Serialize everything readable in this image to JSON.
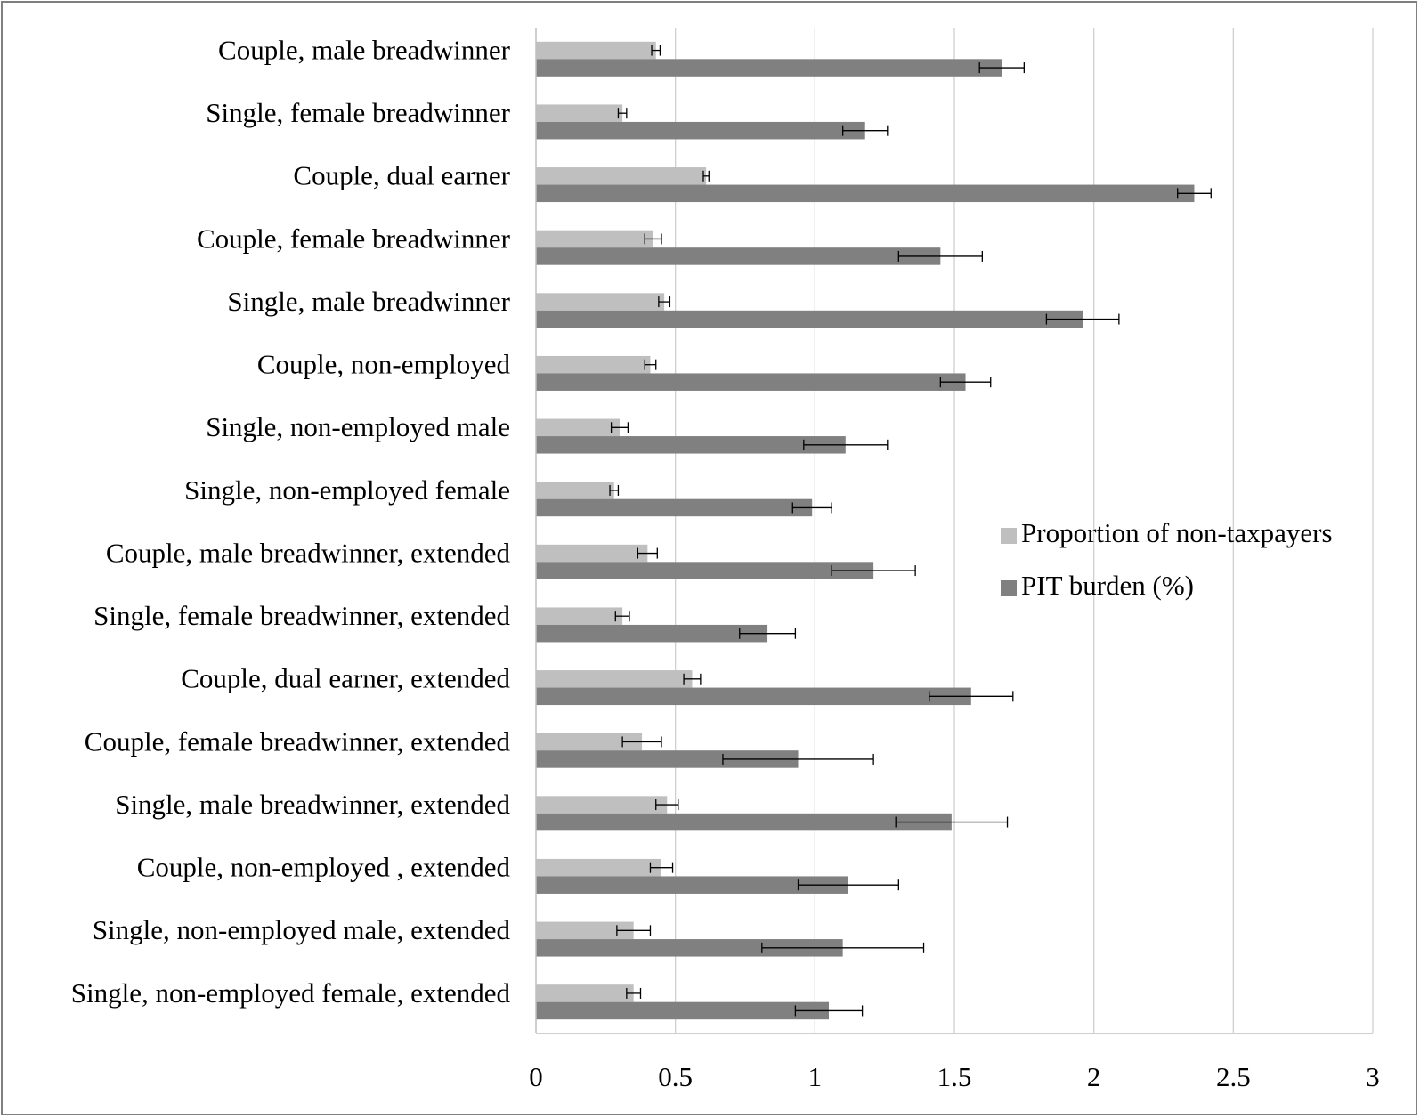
{
  "chart_data": {
    "type": "bar",
    "orientation": "horizontal",
    "title": "",
    "xlabel": "",
    "ylabel": "",
    "xlim": [
      0,
      3
    ],
    "x_ticks": [
      0,
      0.5,
      1,
      1.5,
      2,
      2.5,
      3
    ],
    "x_tick_labels": [
      "0",
      "0.5",
      "1",
      "1.5",
      "2",
      "2.5",
      "3"
    ],
    "grid": "vertical",
    "legend_position": "right",
    "categories": [
      "Couple, male breadwinner",
      "Single, female breadwinner",
      "Couple, dual earner",
      "Couple, female breadwinner",
      "Single, male breadwinner",
      "Couple, non-employed",
      "Single, non-employed male",
      "Single, non-employed female",
      "Couple, male breadwinner, extended",
      "Single, female breadwinner, extended",
      "Couple, dual earner, extended",
      "Couple, female breadwinner, extended",
      "Single, male breadwinner, extended",
      "Couple, non-employed , extended",
      "Single, non-employed male, extended",
      "Single, non-employed female, extended"
    ],
    "series": [
      {
        "name": "Proportion of non-taxpayers",
        "color": "#bfbfbf",
        "values": [
          0.43,
          0.31,
          0.61,
          0.42,
          0.46,
          0.41,
          0.3,
          0.28,
          0.4,
          0.31,
          0.56,
          0.38,
          0.47,
          0.45,
          0.35,
          0.35
        ],
        "error": [
          0.015,
          0.015,
          0.01,
          0.03,
          0.02,
          0.02,
          0.03,
          0.015,
          0.035,
          0.025,
          0.03,
          0.07,
          0.04,
          0.04,
          0.06,
          0.025
        ]
      },
      {
        "name": "PIT burden (%)",
        "color": "#808080",
        "values": [
          1.67,
          1.18,
          2.36,
          1.45,
          1.96,
          1.54,
          1.11,
          0.99,
          1.21,
          0.83,
          1.56,
          0.94,
          1.49,
          1.12,
          1.1,
          1.05
        ],
        "error": [
          0.08,
          0.08,
          0.06,
          0.15,
          0.13,
          0.09,
          0.15,
          0.07,
          0.15,
          0.1,
          0.15,
          0.27,
          0.2,
          0.18,
          0.29,
          0.12
        ]
      }
    ]
  }
}
